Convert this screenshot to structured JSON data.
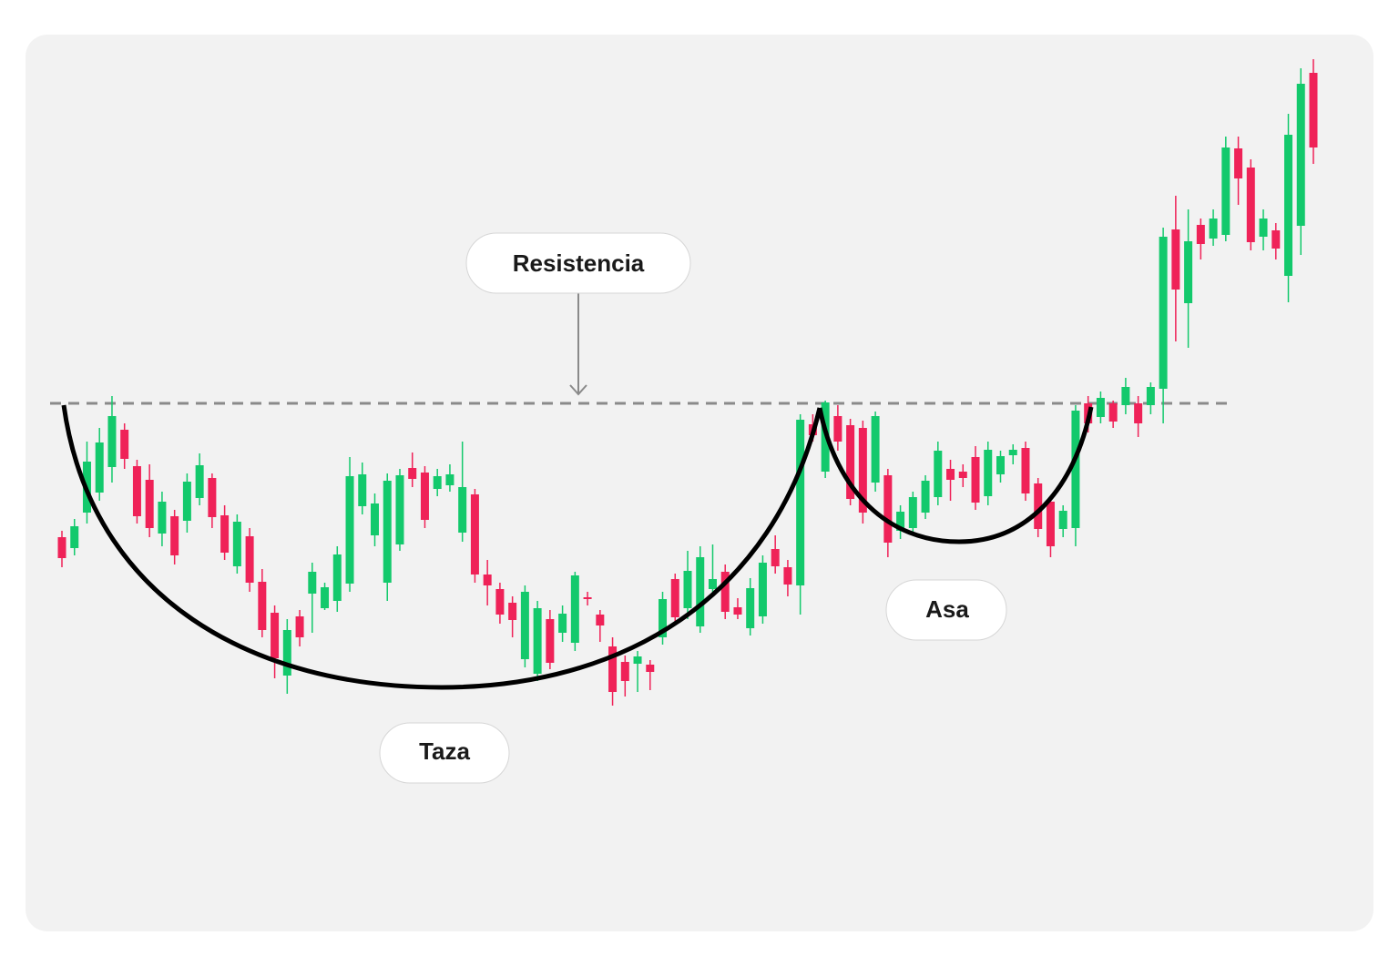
{
  "chart_data": {
    "type": "candlestick",
    "up_color": "#13c96c",
    "down_color": "#ef2258",
    "ylim": [
      0,
      100
    ],
    "resistance": 55.7,
    "annotations": [
      "Resistencia",
      "Taza",
      "Asa"
    ],
    "open": [
      41,
      39.8,
      43.7,
      45.9,
      48.7,
      52.8,
      48.8,
      47.3,
      41.4,
      43.3,
      42.8,
      45.3,
      47.5,
      43.4,
      37.8,
      41.1,
      36.1,
      32.7,
      25.8,
      32.3,
      34.8,
      33.2,
      34,
      35.9,
      44.4,
      41.2,
      36,
      40.2,
      48.6,
      48.1,
      46.3,
      46.7,
      41.5,
      45.7,
      36.9,
      35.3,
      33.8,
      27.6,
      26,
      32,
      30.5,
      29.4,
      34.4,
      32.5,
      29,
      27.3,
      27.1,
      27,
      30,
      36.4,
      33.2,
      31.2,
      35.3,
      37.2,
      33.3,
      31,
      32.3,
      39.7,
      37.7,
      35.7,
      53.4,
      48.2,
      54.3,
      53.3,
      53,
      47,
      47.8,
      41.7,
      42,
      43.7,
      45.4,
      48.5,
      48.2,
      49.8,
      45.5,
      47.9,
      50,
      50.8,
      46.9,
      44.9,
      41.9,
      42,
      55.7,
      54.2,
      55.7,
      55.5,
      55.7,
      55.5,
      57.3,
      74.8,
      66.7,
      75.3,
      73.8,
      74.2,
      83.7,
      81.6,
      74,
      74.7,
      69.7,
      75.2,
      92
    ],
    "high": [
      41.7,
      43,
      51.5,
      53,
      56.5,
      53.5,
      49.5,
      49,
      46,
      44,
      48,
      50.2,
      48,
      44.5,
      43.5,
      42,
      37.5,
      33.5,
      32,
      33,
      38.2,
      36,
      40,
      49.8,
      49.2,
      45.8,
      48,
      48.5,
      50.3,
      48.8,
      48.5,
      49,
      51.5,
      46.3,
      38.5,
      36,
      34.5,
      35.7,
      34,
      33,
      33.5,
      37.2,
      35,
      33,
      30,
      28,
      28.5,
      27.5,
      35,
      37,
      39.5,
      40,
      40.2,
      38,
      34.3,
      36.5,
      39,
      41.2,
      38.5,
      54.5,
      54.5,
      56,
      55.5,
      54,
      53.8,
      54.8,
      48.5,
      44.5,
      46,
      47.8,
      51.5,
      49.5,
      49,
      51,
      51.5,
      50.5,
      51.2,
      51.5,
      47.5,
      45.5,
      44.5,
      55.5,
      56.5,
      57,
      56,
      58.5,
      56.5,
      58,
      75,
      78.5,
      77,
      76,
      77,
      85,
      85,
      82.5,
      77,
      75.5,
      87.5,
      92.5,
      93.5
    ],
    "low": [
      37.7,
      39,
      42.5,
      45,
      47,
      48.5,
      42.5,
      41,
      40,
      38,
      41.5,
      44.5,
      42,
      38.5,
      37,
      35,
      30,
      25.5,
      23.8,
      29,
      30.5,
      33,
      32.8,
      35,
      43.5,
      40,
      34,
      39.5,
      46.5,
      42,
      45.5,
      46,
      40.5,
      36,
      33.5,
      31.5,
      30,
      26.7,
      25.2,
      26.5,
      29.5,
      28.5,
      33.5,
      29.5,
      22.5,
      23.5,
      24,
      24.2,
      29.2,
      31.5,
      32,
      30.5,
      34.5,
      32,
      32,
      30.2,
      31.5,
      37,
      34.5,
      32.5,
      51.5,
      47.5,
      50.5,
      44.5,
      42.5,
      46,
      38.8,
      40.8,
      41.5,
      43,
      44.5,
      45,
      46.5,
      44,
      44.5,
      47,
      49,
      45,
      41,
      38.8,
      41,
      40,
      52.5,
      53.5,
      53,
      54.5,
      52,
      54.5,
      53.5,
      62.5,
      61.8,
      71.5,
      73,
      73.5,
      77.5,
      72.5,
      72.5,
      71.5,
      66.8,
      72,
      82
    ],
    "close": [
      38.7,
      42.2,
      49.3,
      51.4,
      54.3,
      49.6,
      43.3,
      42,
      44.9,
      39,
      47.1,
      48.9,
      43.2,
      39.3,
      42.7,
      36,
      30.8,
      27.7,
      30.8,
      30,
      37.2,
      35.5,
      39.1,
      47.7,
      47.9,
      44.7,
      47.2,
      47.8,
      47.4,
      42.9,
      47.7,
      47.9,
      46.5,
      36.9,
      35.7,
      32.5,
      31.9,
      35,
      33.2,
      27.2,
      32.6,
      36.8,
      34.2,
      31.3,
      24,
      25.2,
      27.9,
      26.2,
      34.2,
      32.2,
      37.3,
      38.8,
      36.4,
      32.8,
      32.5,
      35.4,
      38.2,
      37.8,
      35.8,
      53.9,
      52.2,
      55.8,
      51.5,
      45.2,
      43.7,
      54.3,
      40.4,
      43.8,
      45.4,
      47.2,
      50.5,
      47.3,
      47.5,
      44.8,
      50.6,
      49.9,
      50.6,
      45.8,
      41.9,
      40,
      43.9,
      54.9,
      53.5,
      56.3,
      53.7,
      57.5,
      53.5,
      57.5,
      74,
      68.2,
      73.5,
      73.2,
      76,
      83.8,
      80.4,
      73.4,
      76,
      72.7,
      85.2,
      90.8,
      83.8
    ]
  }
}
